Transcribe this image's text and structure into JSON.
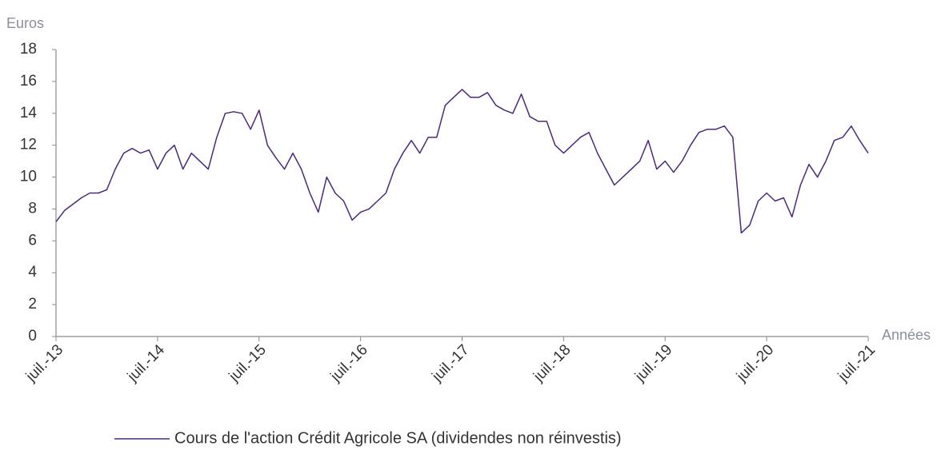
{
  "chart_data": {
    "type": "line",
    "y_label": "Euros",
    "x_label": "Années",
    "categories": [
      "juil.-13",
      null,
      null,
      null,
      null,
      null,
      null,
      null,
      null,
      null,
      null,
      null,
      "juil.-14",
      null,
      null,
      null,
      null,
      null,
      null,
      null,
      null,
      null,
      null,
      null,
      "juil.-15",
      null,
      null,
      null,
      null,
      null,
      null,
      null,
      null,
      null,
      null,
      null,
      "juil.-16",
      null,
      null,
      null,
      null,
      null,
      null,
      null,
      null,
      null,
      null,
      null,
      "juil.-17",
      null,
      null,
      null,
      null,
      null,
      null,
      null,
      null,
      null,
      null,
      null,
      "juil.-18",
      null,
      null,
      null,
      null,
      null,
      null,
      null,
      null,
      null,
      null,
      null,
      "juil.-19",
      null,
      null,
      null,
      null,
      null,
      null,
      null,
      null,
      null,
      null,
      null,
      "juil.-20",
      null,
      null,
      null,
      null,
      null,
      null,
      null,
      null,
      null,
      null,
      null,
      "juil.-21"
    ],
    "series": [
      {
        "name": "Cours de l'action Crédit Agricole SA (dividendes non réinvestis)",
        "color": "#4b2a7b",
        "values": [
          7.2,
          7.9,
          8.3,
          8.7,
          9.0,
          9.0,
          9.2,
          10.5,
          11.5,
          11.8,
          11.5,
          11.7,
          10.5,
          11.5,
          12.0,
          10.5,
          11.5,
          11.0,
          10.5,
          12.5,
          14.0,
          14.1,
          14.0,
          13.0,
          14.2,
          12.0,
          11.2,
          10.5,
          11.5,
          10.5,
          9.0,
          7.8,
          10.0,
          9.0,
          8.5,
          7.3,
          7.8,
          8.0,
          8.5,
          9.0,
          10.5,
          11.5,
          12.3,
          11.5,
          12.5,
          12.5,
          14.5,
          15.0,
          15.5,
          15.0,
          15.0,
          15.3,
          14.5,
          14.2,
          14.0,
          15.2,
          13.8,
          13.5,
          13.5,
          12.0,
          11.5,
          12.0,
          12.5,
          12.8,
          11.5,
          10.5,
          9.5,
          10.0,
          10.5,
          11.0,
          12.3,
          10.5,
          11.0,
          10.3,
          11.0,
          12.0,
          12.8,
          13.0,
          13.0,
          13.2,
          12.5,
          6.5,
          7.0,
          8.5,
          9.0,
          8.5,
          8.7,
          7.5,
          9.5,
          10.8,
          10.0,
          11.0,
          12.3,
          12.5,
          13.2,
          12.3,
          11.5
        ]
      }
    ],
    "ylim": [
      0,
      18
    ],
    "yticks": [
      0,
      2,
      4,
      6,
      8,
      10,
      12,
      14,
      16,
      18
    ],
    "grid": false,
    "legend": "bottom"
  }
}
